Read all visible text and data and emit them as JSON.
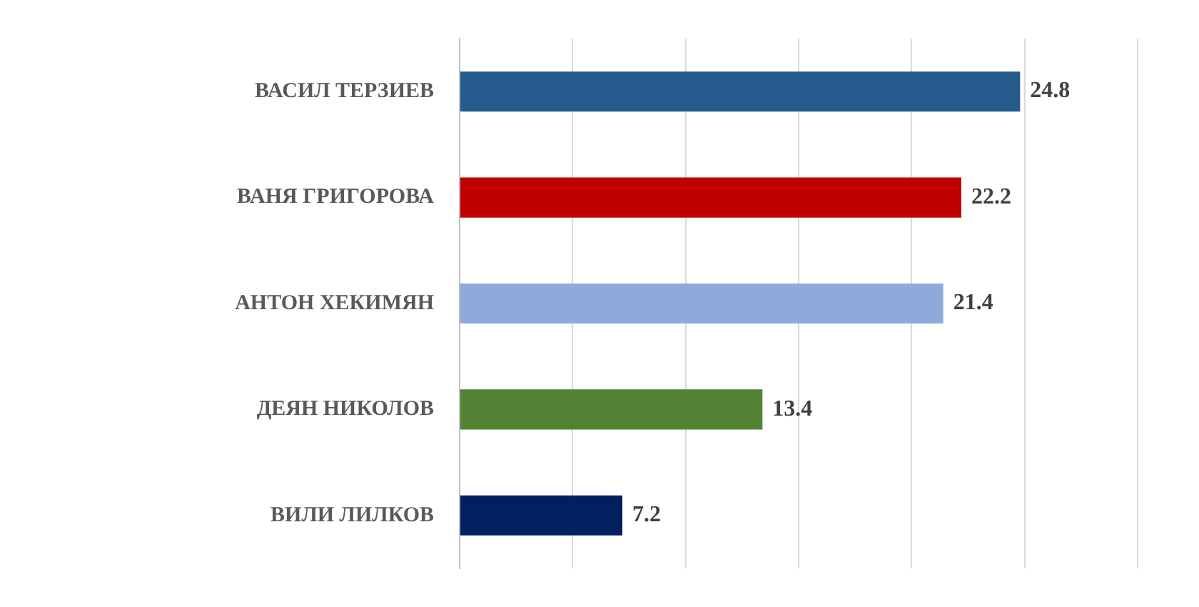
{
  "chart_data": {
    "type": "bar",
    "orientation": "horizontal",
    "categories": [
      "ВАСИЛ ТЕРЗИЕВ",
      "ВАНЯ ГРИГОРОВА",
      "АНТОН ХЕКИМЯН",
      "ДЕЯН НИКОЛОВ",
      "ВИЛИ ЛИЛКОВ"
    ],
    "values": [
      24.8,
      22.2,
      21.4,
      13.4,
      7.2
    ],
    "colors": [
      "#245b8c",
      "#c00000",
      "#8eaadb",
      "#548235",
      "#002060"
    ],
    "xlim": [
      0,
      30
    ],
    "xticks": [
      {
        "value": 0,
        "label": null
      },
      {
        "value": 5,
        "label": null
      },
      {
        "value": 10,
        "label": null
      },
      {
        "value": 15,
        "label": null
      },
      {
        "value": 20,
        "label": null
      },
      {
        "value": 25,
        "label": null
      },
      {
        "value": 30,
        "label": null
      }
    ],
    "tick_labels": "y",
    "grid": "x",
    "data_labels": true
  }
}
